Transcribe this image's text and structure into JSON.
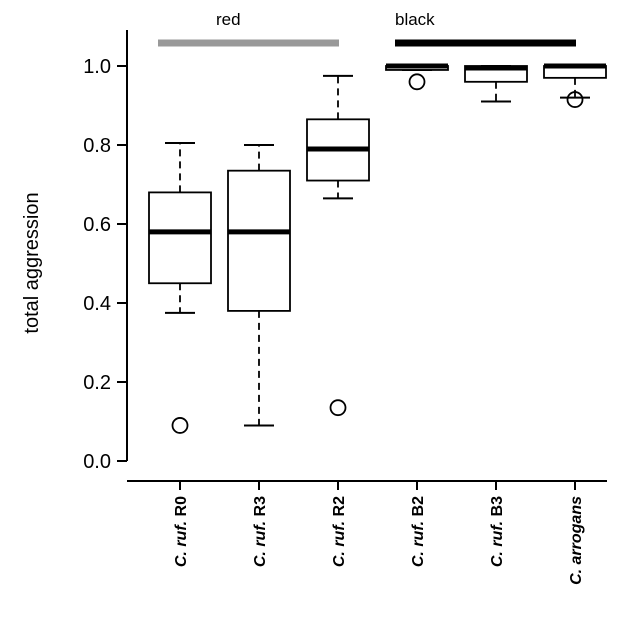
{
  "chart_data": {
    "type": "boxplot",
    "ylabel": "total aggression",
    "xlabel": "",
    "ylim": [
      0.0,
      1.0
    ],
    "yticks": [
      "0.0",
      "0.2",
      "0.4",
      "0.6",
      "0.8",
      "1.0"
    ],
    "categories": [
      {
        "italic": "C. ruf.",
        "suffix": " R0"
      },
      {
        "italic": "C. ruf.",
        "suffix": " R3"
      },
      {
        "italic": "C. ruf.",
        "suffix": " R2"
      },
      {
        "italic": "C. ruf.",
        "suffix": " B2"
      },
      {
        "italic": "C. ruf.",
        "suffix": " B3"
      },
      {
        "italic": "C. arrogans",
        "suffix": ""
      }
    ],
    "boxes": [
      {
        "whisker_low": 0.375,
        "q1": 0.45,
        "median": 0.58,
        "q3": 0.68,
        "whisker_high": 0.805,
        "outliers": [
          0.09
        ]
      },
      {
        "whisker_low": 0.09,
        "q1": 0.38,
        "median": 0.58,
        "q3": 0.735,
        "whisker_high": 0.8,
        "outliers": []
      },
      {
        "whisker_low": 0.665,
        "q1": 0.71,
        "median": 0.79,
        "q3": 0.865,
        "whisker_high": 0.975,
        "outliers": [
          0.135
        ]
      },
      {
        "whisker_low": 0.99,
        "q1": 0.99,
        "median": 1.0,
        "q3": 1.0,
        "whisker_high": 1.0,
        "outliers": [
          0.96
        ]
      },
      {
        "whisker_low": 0.91,
        "q1": 0.96,
        "median": 0.995,
        "q3": 1.0,
        "whisker_high": 1.0,
        "outliers": []
      },
      {
        "whisker_low": 0.92,
        "q1": 0.97,
        "median": 1.0,
        "q3": 1.0,
        "whisker_high": 1.0,
        "outliers": [
          0.915
        ]
      }
    ],
    "groups": [
      {
        "label": "red",
        "color": "#999999",
        "from": 0,
        "to": 2
      },
      {
        "label": "black",
        "color": "#000000",
        "from": 3,
        "to": 5
      }
    ]
  }
}
